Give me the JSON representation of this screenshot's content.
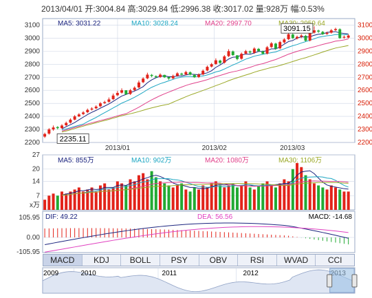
{
  "header": {
    "date": "2013/04/01",
    "open_label": "开:",
    "open": "3004.84",
    "high_label": "高:",
    "high": "3029.84",
    "low_label": "低:",
    "low": "2996.38",
    "close_label": "收:",
    "close": "3017.02",
    "vol_label": "量:",
    "vol": "928万",
    "pct_label": "幅:",
    "pct": "0.53%"
  },
  "colors": {
    "up": "#e2231a",
    "down": "#22aa33",
    "ma5": "#1a237e",
    "ma10": "#1aa5c2",
    "ma20": "#e0408a",
    "ma30": "#9aa826",
    "dif": "#1a237e",
    "dea": "#e040c0",
    "grid": "#cdd6e6",
    "axis_red": "#d81e06"
  },
  "chart_data": [
    {
      "type": "candlestick",
      "title": "",
      "x_labels": [
        "2013/01",
        "2013/02",
        "2013/03"
      ],
      "yticks": [
        2200,
        2300,
        2400,
        2500,
        2600,
        2700,
        2800,
        2900,
        3000,
        3100
      ],
      "ylim": [
        2200,
        3150
      ],
      "ma_labels": [
        {
          "name": "MA5",
          "value": "3031.22",
          "color": "#1a237e"
        },
        {
          "name": "MA10",
          "value": "3028.24",
          "color": "#1aa5c2"
        },
        {
          "name": "MA20",
          "value": "2997.70",
          "color": "#e0408a"
        },
        {
          "name": "MA30",
          "value": "2959.64",
          "color": "#9aa826"
        }
      ],
      "annotations": {
        "max": "3091.15",
        "min": "2235.11"
      },
      "close": [
        2265,
        2300,
        2315,
        2310,
        2330,
        2350,
        2375,
        2400,
        2415,
        2430,
        2450,
        2460,
        2475,
        2500,
        2510,
        2530,
        2560,
        2580,
        2600,
        2570,
        2600,
        2620,
        2660,
        2690,
        2720,
        2710,
        2700,
        2720,
        2700,
        2690,
        2710,
        2730,
        2720,
        2740,
        2720,
        2700,
        2720,
        2750,
        2780,
        2800,
        2830,
        2810,
        2860,
        2900,
        2870,
        2840,
        2880,
        2900,
        2890,
        2920,
        2900,
        2880,
        2930,
        2960,
        2920,
        2970,
        2990,
        3030,
        3000,
        3010,
        3020,
        2980,
        3040,
        3060,
        3050,
        3030,
        3040,
        3060,
        3070,
        3000,
        3010,
        3020
      ],
      "open": [
        2245,
        2268,
        2300,
        2318,
        2310,
        2332,
        2352,
        2375,
        2400,
        2418,
        2432,
        2452,
        2462,
        2478,
        2502,
        2512,
        2532,
        2562,
        2582,
        2600,
        2572,
        2602,
        2622,
        2662,
        2692,
        2718,
        2708,
        2702,
        2718,
        2702,
        2692,
        2712,
        2728,
        2722,
        2738,
        2718,
        2702,
        2722,
        2752,
        2782,
        2802,
        2828,
        2812,
        2862,
        2898,
        2868,
        2842,
        2882,
        2898,
        2888,
        2918,
        2898,
        2882,
        2932,
        2958,
        2922,
        2968,
        2992,
        3028,
        2998,
        3012,
        3018,
        2982,
        3042,
        3058,
        3048,
        3032,
        3042,
        3062,
        3068,
        3004,
        3004
      ],
      "high": [
        2275,
        2310,
        2330,
        2325,
        2340,
        2360,
        2385,
        2410,
        2425,
        2440,
        2460,
        2470,
        2485,
        2510,
        2520,
        2545,
        2575,
        2595,
        2615,
        2600,
        2610,
        2630,
        2675,
        2700,
        2735,
        2725,
        2715,
        2730,
        2720,
        2700,
        2720,
        2740,
        2735,
        2750,
        2745,
        2725,
        2730,
        2760,
        2790,
        2810,
        2845,
        2835,
        2870,
        2915,
        2905,
        2870,
        2890,
        2910,
        2905,
        2930,
        2925,
        2905,
        2940,
        2970,
        2965,
        2980,
        3000,
        3040,
        3035,
        3020,
        3030,
        3025,
        3050,
        3091,
        3065,
        3055,
        3050,
        3070,
        3080,
        3075,
        3020,
        3030
      ],
      "low": [
        2235,
        2260,
        2290,
        2300,
        2305,
        2325,
        2345,
        2370,
        2395,
        2410,
        2425,
        2445,
        2455,
        2470,
        2495,
        2505,
        2525,
        2555,
        2575,
        2565,
        2565,
        2595,
        2615,
        2655,
        2685,
        2700,
        2695,
        2695,
        2695,
        2680,
        2685,
        2705,
        2715,
        2715,
        2715,
        2695,
        2695,
        2715,
        2745,
        2775,
        2795,
        2800,
        2805,
        2855,
        2865,
        2830,
        2835,
        2875,
        2880,
        2880,
        2895,
        2875,
        2875,
        2925,
        2910,
        2915,
        2960,
        2985,
        2995,
        2990,
        3000,
        2975,
        2975,
        3035,
        3040,
        3025,
        3025,
        3035,
        3055,
        2995,
        2996,
        2998
      ]
    },
    {
      "type": "bar",
      "title": "",
      "unit": "万",
      "yticks": [
        "27",
        "20",
        "14",
        "7",
        "x万"
      ],
      "ma_labels": [
        {
          "name": "MA5",
          "value": "855万",
          "color": "#1a237e"
        },
        {
          "name": "MA10",
          "value": "902万",
          "color": "#1aa5c2"
        },
        {
          "name": "MA20",
          "value": "1080万",
          "color": "#e0408a"
        },
        {
          "name": "MA30",
          "value": "1106万",
          "color": "#9aa826"
        }
      ],
      "values": [
        5,
        7,
        8,
        7,
        9,
        8,
        9,
        10,
        11,
        9,
        10,
        11,
        9,
        12,
        13,
        10,
        11,
        14,
        13,
        12,
        15,
        14,
        17,
        18,
        15,
        19,
        16,
        14,
        13,
        12,
        11,
        12,
        13,
        10,
        9,
        11,
        10,
        12,
        11,
        13,
        14,
        12,
        11,
        12,
        13,
        11,
        12,
        14,
        11,
        10,
        12,
        13,
        14,
        12,
        11,
        13,
        15,
        14,
        20,
        23,
        21,
        17,
        15,
        13,
        12,
        11,
        10,
        12,
        11,
        10,
        9,
        9
      ]
    },
    {
      "type": "line",
      "title": "",
      "series": [
        {
          "name": "DIF",
          "value": "49.22"
        },
        {
          "name": "DEA",
          "value": "56.56"
        },
        {
          "name": "MACD",
          "value": "-14.68"
        }
      ],
      "yticks": [
        "105.95",
        "0.00",
        "-105.95"
      ],
      "ylim": [
        -105.95,
        105.95
      ]
    },
    {
      "type": "area",
      "title": "",
      "x_labels": [
        "2009",
        "2010",
        "2011",
        "2012",
        "2013"
      ]
    }
  ],
  "tabs": [
    "MACD",
    "KDJ",
    "BOLL",
    "PSY",
    "OBV",
    "RSI",
    "WVAD",
    "CCI"
  ],
  "active_tab": 0
}
